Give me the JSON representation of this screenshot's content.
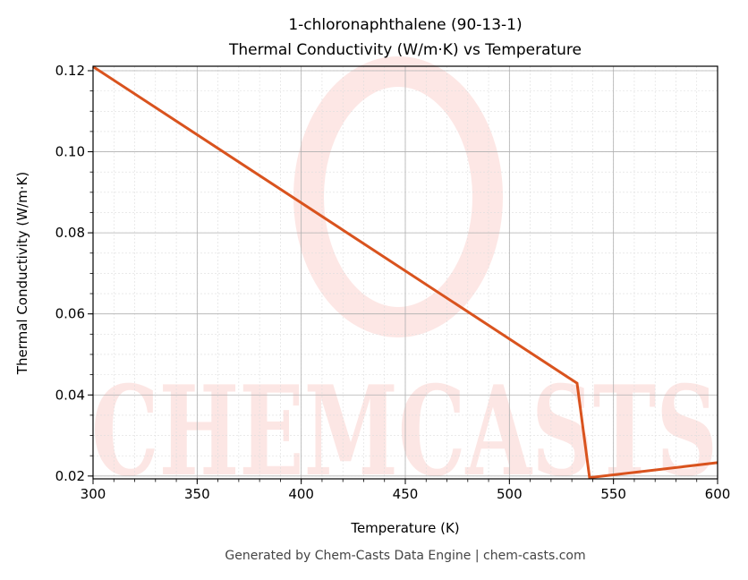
{
  "chart_data": {
    "type": "line",
    "title": "1-chloronaphthalene (90-13-1)",
    "subtitle": "Thermal Conductivity (W/m·K) vs Temperature",
    "xlabel": "Temperature (K)",
    "ylabel": "Thermal Conductivity (W/m·K)",
    "xlim": [
      300,
      600
    ],
    "ylim": [
      0.0193,
      0.1211
    ],
    "xticks": [
      300,
      350,
      400,
      450,
      500,
      550,
      600
    ],
    "xtick_labels": [
      "300",
      "350",
      "400",
      "450",
      "500",
      "550",
      "600"
    ],
    "yticks": [
      0.02,
      0.04,
      0.06,
      0.08,
      0.1,
      0.12
    ],
    "ytick_labels": [
      "0.02",
      "0.04",
      "0.06",
      "0.08",
      "0.10",
      "0.12"
    ],
    "grid": true,
    "series": [
      {
        "color": "#d9531e",
        "x": [
          300,
          532.5,
          538.5,
          600
        ],
        "y": [
          0.121,
          0.0429,
          0.0196,
          0.0233
        ]
      }
    ]
  },
  "watermark": "CHEMCASTS",
  "footer": "Generated by Chem-Casts Data Engine | chem-casts.com"
}
